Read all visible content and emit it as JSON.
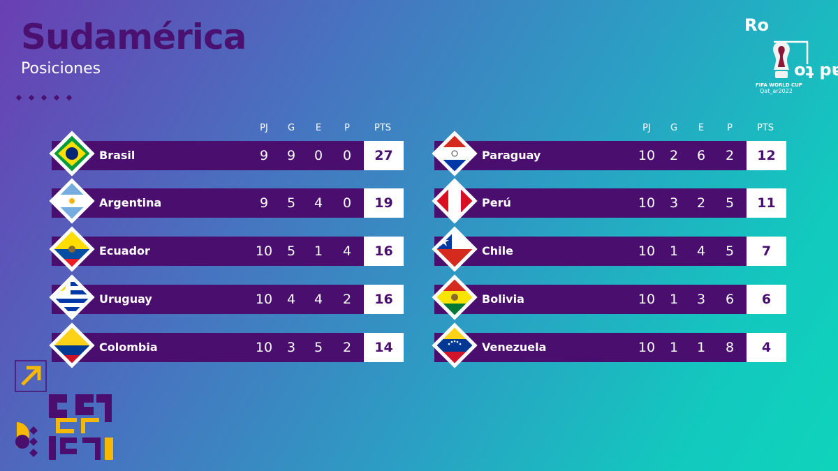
{
  "header": {
    "title": "Sudamérica",
    "subtitle": "Posiciones"
  },
  "logo": {
    "top_text": "Ro",
    "side_text": "ad to",
    "brand_line1": "FIFA WORLD CUP",
    "brand_line2": "Qat_ar2022"
  },
  "columns": {
    "pj": "PJ",
    "g": "G",
    "e": "E",
    "p": "P",
    "pts": "PTS"
  },
  "left_table": [
    {
      "team": "Brasil",
      "flag": "brazil-flag-icon",
      "pj": "9",
      "g": "9",
      "e": "0",
      "p": "0",
      "pts": "27"
    },
    {
      "team": "Argentina",
      "flag": "argentina-flag-icon",
      "pj": "9",
      "g": "5",
      "e": "4",
      "p": "0",
      "pts": "19"
    },
    {
      "team": "Ecuador",
      "flag": "ecuador-flag-icon",
      "pj": "10",
      "g": "5",
      "e": "1",
      "p": "4",
      "pts": "16"
    },
    {
      "team": "Uruguay",
      "flag": "uruguay-flag-icon",
      "pj": "10",
      "g": "4",
      "e": "4",
      "p": "2",
      "pts": "16"
    },
    {
      "team": "Colombia",
      "flag": "colombia-flag-icon",
      "pj": "10",
      "g": "3",
      "e": "5",
      "p": "2",
      "pts": "14"
    }
  ],
  "right_table": [
    {
      "team": "Paraguay",
      "flag": "paraguay-flag-icon",
      "pj": "10",
      "g": "2",
      "e": "6",
      "p": "2",
      "pts": "12"
    },
    {
      "team": "Perú",
      "flag": "peru-flag-icon",
      "pj": "10",
      "g": "3",
      "e": "2",
      "p": "5",
      "pts": "11"
    },
    {
      "team": "Chile",
      "flag": "chile-flag-icon",
      "pj": "10",
      "g": "1",
      "e": "4",
      "p": "5",
      "pts": "7"
    },
    {
      "team": "Bolivia",
      "flag": "bolivia-flag-icon",
      "pj": "10",
      "g": "1",
      "e": "3",
      "p": "6",
      "pts": "6"
    },
    {
      "team": "Venezuela",
      "flag": "venezuela-flag-icon",
      "pj": "10",
      "g": "1",
      "e": "1",
      "p": "8",
      "pts": "4"
    }
  ],
  "colors": {
    "row_bg": "#4a0f6e",
    "title": "#4a1170",
    "accent_yellow": "#f6b800"
  }
}
